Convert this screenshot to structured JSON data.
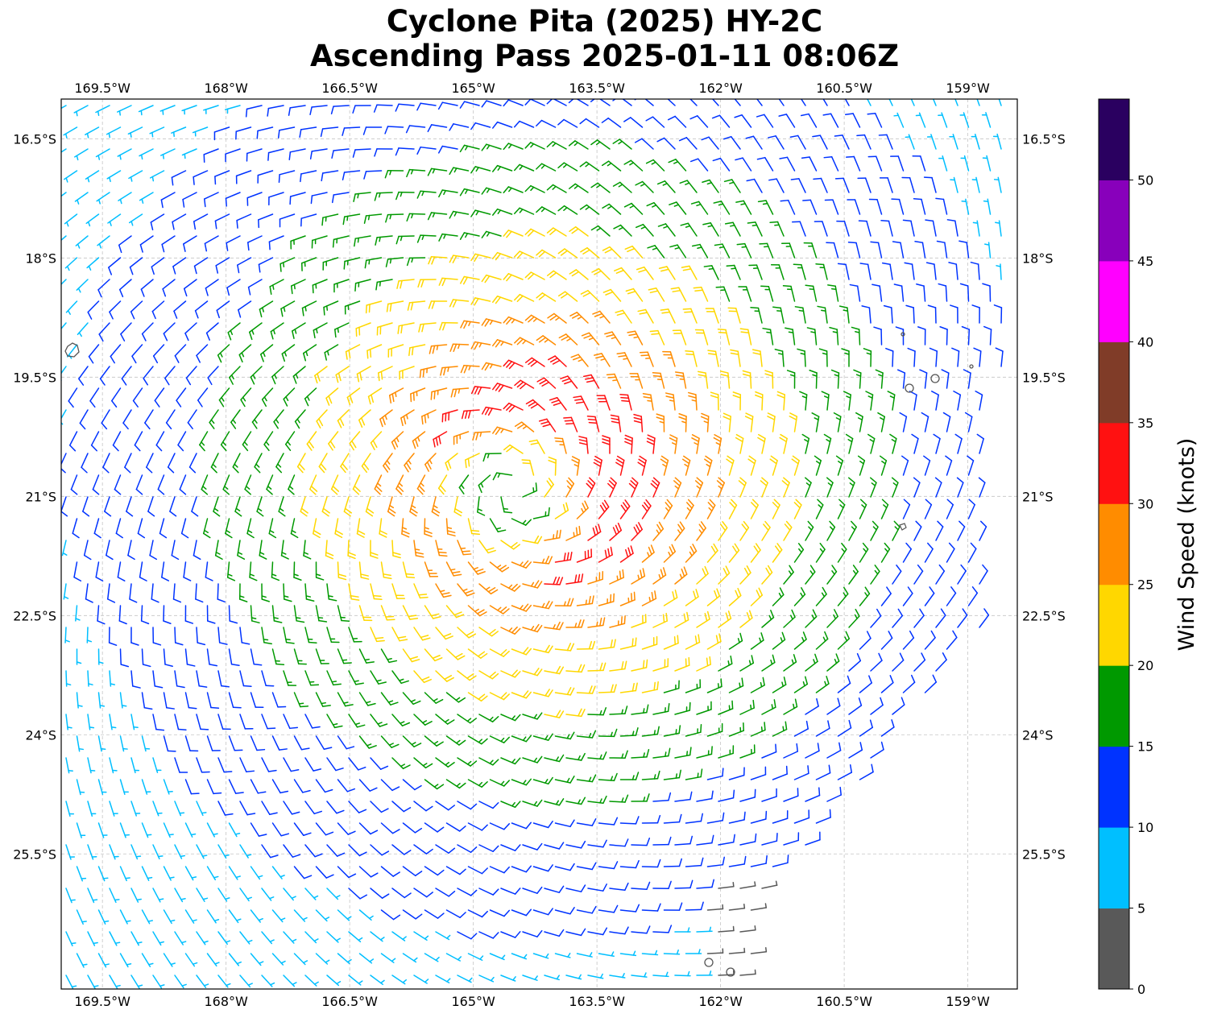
{
  "title": {
    "line1": "Cyclone Pita (2025) HY-2C",
    "line2": "Ascending Pass 2025-01-11 08:06Z"
  },
  "map": {
    "lon_range": [
      -170,
      -158.4
    ],
    "lat_range": [
      -27.2,
      -16.0
    ],
    "lon_ticks": [
      {
        "value": -169.5,
        "label": "169.5°W"
      },
      {
        "value": -168.0,
        "label": "168°W"
      },
      {
        "value": -166.5,
        "label": "166.5°W"
      },
      {
        "value": -165.0,
        "label": "165°W"
      },
      {
        "value": -163.5,
        "label": "163.5°W"
      },
      {
        "value": -162.0,
        "label": "162°W"
      },
      {
        "value": -160.5,
        "label": "160.5°W"
      },
      {
        "value": -159.0,
        "label": "159°W"
      }
    ],
    "lat_ticks": [
      {
        "value": -16.5,
        "label": "16.5°S"
      },
      {
        "value": -18.0,
        "label": "18°S"
      },
      {
        "value": -19.5,
        "label": "19.5°S"
      },
      {
        "value": -21.0,
        "label": "21°S"
      },
      {
        "value": -22.5,
        "label": "22.5°S"
      },
      {
        "value": -24.0,
        "label": "24°S"
      },
      {
        "value": -25.5,
        "label": "25.5°S"
      }
    ],
    "gridlines": true,
    "wind_field": {
      "cyclone_center": {
        "lon": -164.5,
        "lat": -20.9
      },
      "max_wind_knots": 35,
      "swath_east_edge_lon": [
        -158.5,
        -158.8,
        -161.5
      ]
    }
  },
  "colorbar": {
    "label": "Wind Speed (knots)",
    "ticks": [
      "0",
      "5",
      "10",
      "15",
      "20",
      "25",
      "30",
      "35",
      "40",
      "45",
      "50"
    ],
    "bins": [
      {
        "min": 0,
        "max": 5,
        "color": "#595959"
      },
      {
        "min": 5,
        "max": 10,
        "color": "#00bfff"
      },
      {
        "min": 10,
        "max": 15,
        "color": "#0033ff"
      },
      {
        "min": 15,
        "max": 20,
        "color": "#009900"
      },
      {
        "min": 20,
        "max": 25,
        "color": "#ffd700"
      },
      {
        "min": 25,
        "max": 30,
        "color": "#ff8c00"
      },
      {
        "min": 30,
        "max": 35,
        "color": "#ff1111"
      },
      {
        "min": 35,
        "max": 40,
        "color": "#803c28"
      },
      {
        "min": 40,
        "max": 45,
        "color": "#ff00ff"
      },
      {
        "min": 45,
        "max": 50,
        "color": "#8800bb"
      },
      {
        "min": 50,
        "max": 55,
        "color": "#2a0060"
      }
    ]
  }
}
